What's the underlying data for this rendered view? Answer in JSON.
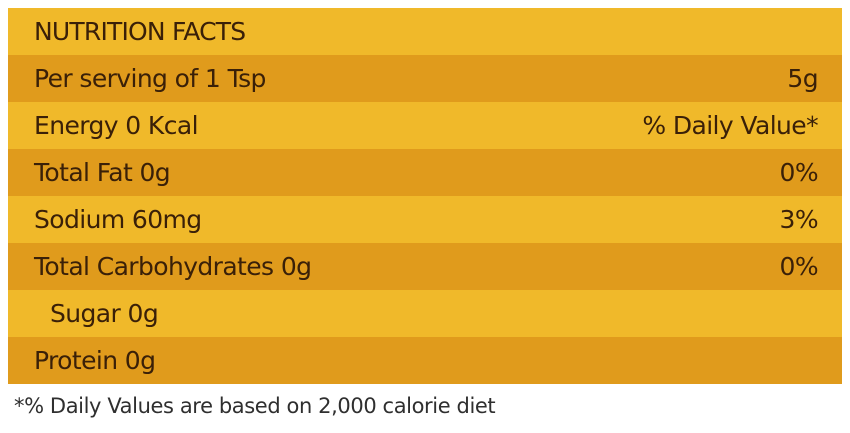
{
  "title": "NUTRITION FACTS",
  "rows": [
    {
      "label": "Per serving of 1 Tsp",
      "value": "5g"
    },
    {
      "label": "Energy 0 Kcal",
      "value": "% Daily Value*"
    },
    {
      "label": "Total Fat 0g",
      "value": "0%"
    },
    {
      "label": "Sodium 60mg",
      "value": "3%"
    },
    {
      "label": "Total Carbohydrates 0g",
      "value": "0%"
    },
    {
      "label": "Sugar 0g",
      "value": ""
    },
    {
      "label": "Protein 0g",
      "value": ""
    }
  ],
  "footnote": "*% Daily Values are based on 2,000 calorie diet",
  "colors": {
    "light_band": "#f0b92a",
    "dark_band": "#e09b1c",
    "text": "#3a2008"
  }
}
